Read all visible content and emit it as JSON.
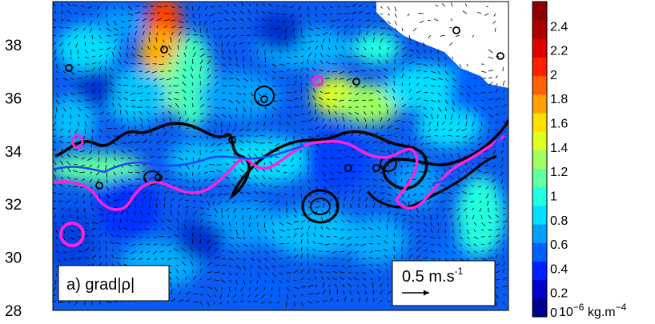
{
  "chart_data": {
    "type": "heatmap",
    "panel_label": "a) grad|ρ|",
    "y_ticks": [
      "28",
      "30",
      "32",
      "34",
      "36",
      "38"
    ],
    "ylim": [
      28,
      39.3
    ],
    "colorbar": {
      "ticks": [
        "0",
        "0.2",
        "0.4",
        "0.6",
        "0.8",
        "1",
        "1.2",
        "1.4",
        "1.6",
        "1.8",
        "2",
        "2.2",
        "2.4"
      ],
      "range": [
        0,
        2.6
      ],
      "unit_base": "10",
      "unit_exp": "−6",
      "unit_text": " kg.m",
      "unit_exp2": "−4",
      "colors": [
        "#00008f",
        "#0000cf",
        "#0020ff",
        "#0060ff",
        "#00a0ff",
        "#00dfff",
        "#20ffdf",
        "#60ffa0",
        "#a0ff60",
        "#dfff20",
        "#ffdf00",
        "#ffa000",
        "#ff6000",
        "#ff2000",
        "#df0000",
        "#af0000",
        "#8f0000"
      ]
    },
    "vector_scale": {
      "label": "0.5 m.s",
      "exp": "-1"
    },
    "line_colors": {
      "black_contour": "#000000",
      "magenta_contour": "#ff22dd",
      "blue_contour": "#2244ff",
      "land": "#ffffff"
    }
  }
}
